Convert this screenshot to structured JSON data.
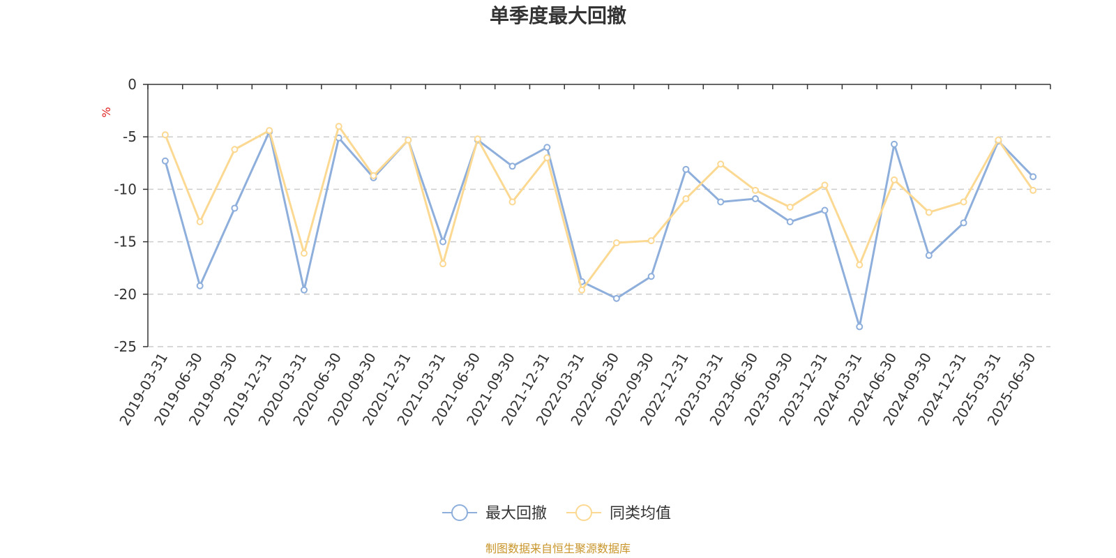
{
  "chart_data": {
    "type": "line",
    "title": "单季度最大回撤",
    "ylabel": "%",
    "ylim": [
      -25,
      0
    ],
    "yticks": [
      0,
      -5,
      -10,
      -15,
      -20,
      -25
    ],
    "grid": true,
    "legend_position": "bottom",
    "categories": [
      "2019-03-31",
      "2019-06-30",
      "2019-09-30",
      "2019-12-31",
      "2020-03-31",
      "2020-06-30",
      "2020-09-30",
      "2020-12-31",
      "2021-03-31",
      "2021-06-30",
      "2021-09-30",
      "2021-12-31",
      "2022-03-31",
      "2022-06-30",
      "2022-09-30",
      "2022-12-31",
      "2023-03-31",
      "2023-06-30",
      "2023-09-30",
      "2023-12-31",
      "2024-03-31",
      "2024-06-30",
      "2024-09-30",
      "2024-12-31",
      "2025-03-31",
      "2025-06-30"
    ],
    "series": [
      {
        "name": "最大回撤",
        "color": "#8eaedb",
        "values": [
          -7.3,
          -19.2,
          -11.8,
          -4.5,
          -19.6,
          -5.1,
          -8.9,
          -5.3,
          -15.0,
          -5.3,
          -7.8,
          -6.0,
          -18.8,
          -20.4,
          -18.3,
          -8.1,
          -11.2,
          -10.9,
          -13.1,
          -12.0,
          -23.1,
          -5.7,
          -16.3,
          -13.2,
          -5.4,
          -8.8
        ]
      },
      {
        "name": "同类均值",
        "color": "#fcd993",
        "values": [
          -4.8,
          -13.1,
          -6.2,
          -4.4,
          -16.1,
          -4.0,
          -8.7,
          -5.3,
          -17.1,
          -5.2,
          -11.2,
          -7.0,
          -19.6,
          -15.1,
          -14.9,
          -10.9,
          -7.6,
          -10.1,
          -11.7,
          -9.6,
          -17.2,
          -9.1,
          -12.2,
          -11.2,
          -5.3,
          -10.1
        ]
      }
    ]
  },
  "source_note": "制图数据来自恒生聚源数据库"
}
